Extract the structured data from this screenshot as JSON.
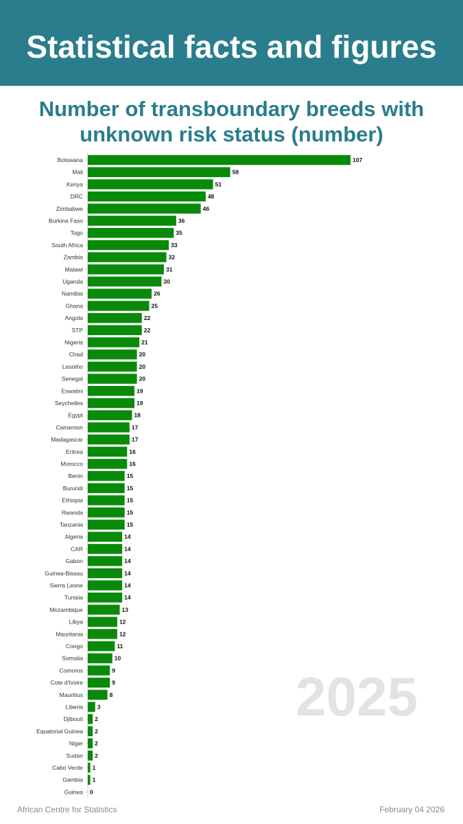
{
  "header": {
    "title": "Statistical facts and figures",
    "background_color": "#2a7d8c"
  },
  "chart_title": {
    "line1": "Number of transboundary breeds with",
    "line2": "unknown risk status (number)",
    "color": "#2a7d8c"
  },
  "watermark": "2025",
  "footer": {
    "source": "African Centre for Statistics",
    "date": "February 04 2026"
  },
  "chart_data": {
    "type": "bar",
    "orientation": "horizontal",
    "title": "Number of transboundary breeds with unknown risk status (number)",
    "bar_color": "#0a8a0a",
    "grid": false,
    "legend": "none",
    "xlim": [
      0,
      110
    ],
    "categories": [
      "Botswana",
      "Mali",
      "Kenya",
      "DRC",
      "Zimbabwe",
      "Burkina Faso",
      "Togo",
      "South Africa",
      "Zambia",
      "Malawi",
      "Uganda",
      "Namibia",
      "Ghana",
      "Angola",
      "STP",
      "Nigeria",
      "Chad",
      "Lesotho",
      "Senegal",
      "Eswatini",
      "Seychelles",
      "Egypt",
      "Cameroon",
      "Madagascar",
      "Eritrea",
      "Morocco",
      "Benin",
      "Burundi",
      "Ethiopia",
      "Rwanda",
      "Tanzania",
      "Algeria",
      "CAR",
      "Gabon",
      "Guinea-Bissau",
      "Sierra Leone",
      "Tunisia",
      "Mozambique",
      "Libya",
      "Mauritania",
      "Congo",
      "Somalia",
      "Comoros",
      "Cote d'Ivoire",
      "Mauritius",
      "Liberia",
      "Djibouti",
      "Equatorial Guinea",
      "Niger",
      "Sudan",
      "Cabo Verde",
      "Gambia",
      "Guinea"
    ],
    "values": [
      107,
      58,
      51,
      48,
      46,
      36,
      35,
      33,
      32,
      31,
      30,
      26,
      25,
      22,
      22,
      21,
      20,
      20,
      20,
      19,
      19,
      18,
      17,
      17,
      16,
      16,
      15,
      15,
      15,
      15,
      15,
      14,
      14,
      14,
      14,
      14,
      14,
      13,
      12,
      12,
      11,
      10,
      9,
      9,
      8,
      3,
      2,
      2,
      2,
      2,
      1,
      1,
      0
    ]
  }
}
